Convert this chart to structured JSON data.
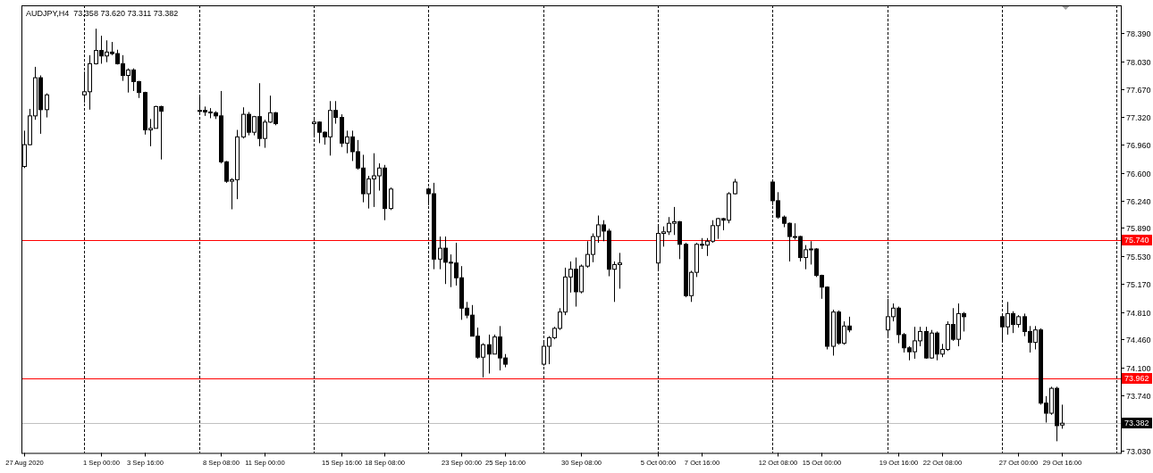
{
  "chart_data": {
    "type": "candlestick",
    "title": "AUDJPY,H4  73.358 73.620 73.311 73.382",
    "color": "#000000",
    "x": [
      "2020-08-27T08:00",
      "2020-08-27T16:00",
      "2020-08-28T00:00",
      "2020-08-28T08:00",
      "2020-08-28T16:00",
      "2020-08-31T00:00",
      "2020-08-31T08:00",
      "2020-08-31T16:00",
      "2020-09-01T00:00",
      "2020-09-01T08:00",
      "2020-09-01T16:00",
      "2020-09-02T00:00",
      "2020-09-02T08:00",
      "2020-09-02T16:00",
      "2020-09-03T00:00",
      "2020-09-03T08:00",
      "2020-09-03T16:00",
      "2020-09-04T00:00",
      "2020-09-04T08:00",
      "2020-09-04T16:00",
      "2020-09-07T00:00",
      "2020-09-07T08:00",
      "2020-09-07T16:00",
      "2020-09-08T00:00",
      "2020-09-08T08:00",
      "2020-09-08T16:00",
      "2020-09-09T00:00",
      "2020-09-09T08:00",
      "2020-09-09T16:00",
      "2020-09-10T00:00",
      "2020-09-10T08:00",
      "2020-09-10T16:00",
      "2020-09-11T00:00",
      "2020-09-11T08:00",
      "2020-09-11T16:00",
      "2020-09-14T00:00",
      "2020-09-14T08:00",
      "2020-09-14T16:00",
      "2020-09-15T00:00",
      "2020-09-15T08:00",
      "2020-09-15T16:00",
      "2020-09-16T00:00",
      "2020-09-16T08:00",
      "2020-09-16T16:00",
      "2020-09-17T00:00",
      "2020-09-17T08:00",
      "2020-09-17T16:00",
      "2020-09-18T00:00",
      "2020-09-18T08:00",
      "2020-09-18T16:00",
      "2020-09-21T00:00",
      "2020-09-21T08:00",
      "2020-09-21T16:00",
      "2020-09-22T00:00",
      "2020-09-22T08:00",
      "2020-09-22T16:00",
      "2020-09-23T00:00",
      "2020-09-23T08:00",
      "2020-09-23T16:00",
      "2020-09-24T00:00",
      "2020-09-24T08:00",
      "2020-09-24T16:00",
      "2020-09-25T00:00",
      "2020-09-25T08:00",
      "2020-09-25T16:00",
      "2020-09-28T00:00",
      "2020-09-28T08:00",
      "2020-09-28T16:00",
      "2020-09-29T00:00",
      "2020-09-29T08:00",
      "2020-09-29T16:00",
      "2020-09-30T00:00",
      "2020-09-30T08:00",
      "2020-09-30T16:00",
      "2020-10-01T00:00",
      "2020-10-01T08:00",
      "2020-10-01T16:00",
      "2020-10-02T00:00",
      "2020-10-02T08:00",
      "2020-10-02T16:00",
      "2020-10-05T00:00",
      "2020-10-05T08:00",
      "2020-10-05T16:00",
      "2020-10-06T00:00",
      "2020-10-06T08:00",
      "2020-10-06T16:00",
      "2020-10-07T00:00",
      "2020-10-07T08:00",
      "2020-10-07T16:00",
      "2020-10-08T00:00",
      "2020-10-08T08:00",
      "2020-10-08T16:00",
      "2020-10-09T00:00",
      "2020-10-09T08:00",
      "2020-10-09T16:00",
      "2020-10-12T00:00",
      "2020-10-12T08:00",
      "2020-10-12T16:00",
      "2020-10-13T00:00",
      "2020-10-13T08:00",
      "2020-10-13T16:00",
      "2020-10-14T00:00",
      "2020-10-14T08:00",
      "2020-10-14T16:00",
      "2020-10-15T00:00",
      "2020-10-15T08:00",
      "2020-10-15T16:00",
      "2020-10-16T00:00",
      "2020-10-16T08:00",
      "2020-10-16T16:00",
      "2020-10-19T00:00",
      "2020-10-19T08:00",
      "2020-10-19T16:00",
      "2020-10-20T00:00",
      "2020-10-20T08:00",
      "2020-10-20T16:00",
      "2020-10-21T00:00",
      "2020-10-21T08:00",
      "2020-10-21T16:00",
      "2020-10-22T00:00",
      "2020-10-22T08:00",
      "2020-10-22T16:00",
      "2020-10-23T00:00",
      "2020-10-23T08:00",
      "2020-10-23T16:00",
      "2020-10-26T00:00",
      "2020-10-26T08:00",
      "2020-10-26T16:00",
      "2020-10-27T00:00",
      "2020-10-27T08:00",
      "2020-10-27T16:00",
      "2020-10-28T00:00",
      "2020-10-28T08:00",
      "2020-10-28T16:00",
      "2020-10-29T00:00",
      "2020-10-29T08:00",
      "2020-10-29T16:00"
    ],
    "ohlc": [
      [
        76.68,
        77.14,
        76.66,
        76.96
      ],
      [
        76.96,
        77.42,
        76.95,
        77.33
      ],
      [
        77.33,
        77.96,
        77.28,
        77.82
      ],
      [
        77.82,
        77.85,
        77.1,
        77.41
      ],
      [
        77.41,
        77.62,
        77.31,
        77.6
      ],
      [
        77.6,
        77.9,
        77.5,
        77.64
      ],
      [
        77.64,
        78.11,
        77.41,
        78.0
      ],
      [
        78.0,
        78.45,
        77.99,
        78.17
      ],
      [
        78.17,
        78.36,
        78.0,
        78.1
      ],
      [
        78.1,
        78.3,
        78.02,
        78.15
      ],
      [
        78.15,
        78.28,
        78.11,
        78.13
      ],
      [
        78.13,
        78.18,
        77.99,
        78.0
      ],
      [
        78.0,
        78.11,
        77.78,
        77.85
      ],
      [
        77.85,
        77.94,
        77.63,
        77.92
      ],
      [
        77.92,
        77.94,
        77.65,
        77.77
      ],
      [
        77.77,
        77.78,
        77.56,
        77.63
      ],
      [
        77.63,
        77.64,
        77.09,
        77.15
      ],
      [
        77.15,
        77.29,
        76.94,
        77.17
      ],
      [
        77.17,
        77.46,
        77.17,
        77.45
      ],
      [
        77.45,
        77.46,
        76.77,
        77.39
      ],
      [
        77.39,
        77.59,
        77.36,
        77.4
      ],
      [
        77.4,
        77.45,
        77.33,
        77.38
      ],
      [
        77.38,
        77.43,
        77.3,
        77.37
      ],
      [
        77.37,
        77.39,
        77.29,
        77.33
      ],
      [
        77.33,
        77.65,
        76.72,
        76.74
      ],
      [
        76.74,
        76.75,
        76.47,
        76.49
      ],
      [
        76.49,
        76.53,
        76.13,
        76.51
      ],
      [
        76.51,
        77.15,
        76.26,
        77.06
      ],
      [
        77.06,
        77.44,
        77.04,
        77.35
      ],
      [
        77.35,
        77.38,
        77.08,
        77.12
      ],
      [
        77.12,
        77.33,
        77.08,
        77.32
      ],
      [
        77.32,
        77.75,
        76.94,
        77.04
      ],
      [
        77.04,
        77.28,
        76.92,
        77.25
      ],
      [
        77.25,
        77.59,
        77.24,
        77.37
      ],
      [
        77.37,
        77.38,
        77.21,
        77.23
      ],
      [
        77.23,
        77.28,
        77.08,
        77.25
      ],
      [
        77.25,
        77.26,
        76.98,
        77.12
      ],
      [
        77.12,
        77.13,
        76.96,
        77.06
      ],
      [
        77.06,
        77.52,
        76.82,
        77.4
      ],
      [
        77.4,
        77.52,
        77.23,
        77.31
      ],
      [
        77.31,
        77.35,
        76.93,
        76.98
      ],
      [
        76.98,
        77.14,
        76.85,
        77.06
      ],
      [
        77.06,
        77.14,
        76.75,
        76.87
      ],
      [
        76.87,
        77.02,
        76.64,
        76.66
      ],
      [
        76.66,
        76.83,
        76.22,
        76.33
      ],
      [
        76.33,
        76.56,
        76.14,
        76.52
      ],
      [
        76.52,
        76.85,
        76.16,
        76.56
      ],
      [
        76.56,
        76.72,
        76.37,
        76.66
      ],
      [
        76.66,
        76.7,
        75.99,
        76.14
      ],
      [
        76.14,
        76.41,
        76.12,
        76.39
      ],
      [
        76.39,
        76.41,
        76.18,
        76.33
      ],
      [
        76.33,
        76.47,
        75.36,
        75.49
      ],
      [
        75.49,
        75.78,
        75.36,
        75.63
      ],
      [
        75.63,
        75.78,
        75.17,
        75.45
      ],
      [
        75.45,
        75.55,
        75.13,
        75.44
      ],
      [
        75.44,
        75.7,
        75.15,
        75.25
      ],
      [
        75.25,
        75.4,
        74.71,
        74.86
      ],
      [
        74.86,
        74.94,
        74.73,
        74.77
      ],
      [
        74.77,
        74.9,
        74.5,
        74.5
      ],
      [
        74.5,
        74.61,
        74.21,
        74.23
      ],
      [
        74.23,
        74.41,
        73.97,
        74.39
      ],
      [
        74.39,
        74.52,
        74.02,
        74.27
      ],
      [
        74.27,
        74.52,
        74.27,
        74.49
      ],
      [
        74.49,
        74.63,
        74.06,
        74.22
      ],
      [
        74.22,
        74.27,
        74.1,
        74.14
      ],
      [
        74.14,
        74.42,
        74.12,
        74.37
      ],
      [
        74.37,
        74.5,
        74.14,
        74.48
      ],
      [
        74.48,
        74.62,
        74.46,
        74.6
      ],
      [
        74.6,
        74.86,
        74.58,
        74.81
      ],
      [
        74.81,
        75.38,
        74.77,
        75.26
      ],
      [
        75.26,
        75.46,
        75.06,
        75.36
      ],
      [
        75.36,
        75.51,
        74.88,
        75.07
      ],
      [
        75.07,
        75.42,
        75.05,
        75.4
      ],
      [
        75.4,
        75.72,
        75.38,
        75.55
      ],
      [
        75.55,
        75.82,
        75.45,
        75.78
      ],
      [
        75.78,
        76.05,
        75.7,
        75.93
      ],
      [
        75.93,
        75.99,
        75.72,
        75.85
      ],
      [
        75.85,
        75.88,
        75.27,
        75.36
      ],
      [
        75.36,
        75.46,
        74.94,
        75.42
      ],
      [
        75.42,
        75.57,
        75.11,
        75.44
      ],
      [
        75.44,
        75.91,
        75.36,
        75.82
      ],
      [
        75.82,
        75.91,
        75.65,
        75.84
      ],
      [
        75.84,
        76.03,
        75.8,
        75.95
      ],
      [
        75.95,
        76.16,
        75.8,
        75.97
      ],
      [
        75.97,
        75.98,
        75.49,
        75.68
      ],
      [
        75.68,
        75.7,
        75.0,
        75.02
      ],
      [
        75.02,
        75.34,
        74.94,
        75.32
      ],
      [
        75.32,
        75.7,
        75.26,
        75.68
      ],
      [
        75.68,
        75.76,
        75.62,
        75.67
      ],
      [
        75.67,
        75.76,
        75.53,
        75.72
      ],
      [
        75.72,
        75.99,
        75.7,
        75.92
      ],
      [
        75.92,
        76.02,
        75.75,
        76.01
      ],
      [
        76.01,
        76.02,
        75.86,
        75.99
      ],
      [
        75.99,
        76.35,
        75.95,
        76.33
      ],
      [
        76.33,
        76.52,
        76.32,
        76.48
      ],
      [
        76.48,
        76.49,
        76.18,
        76.24
      ],
      [
        76.24,
        76.35,
        76.01,
        76.03
      ],
      [
        76.03,
        76.05,
        75.9,
        75.95
      ],
      [
        75.95,
        75.96,
        75.46,
        75.78
      ],
      [
        75.78,
        75.95,
        75.74,
        75.78
      ],
      [
        75.78,
        75.79,
        75.46,
        75.51
      ],
      [
        75.51,
        75.67,
        75.36,
        75.61
      ],
      [
        75.61,
        75.72,
        75.42,
        75.62
      ],
      [
        75.62,
        75.63,
        75.26,
        75.28
      ],
      [
        75.28,
        75.29,
        74.98,
        75.13
      ],
      [
        75.13,
        75.14,
        74.33,
        74.37
      ],
      [
        74.37,
        74.84,
        74.25,
        74.81
      ],
      [
        74.81,
        74.83,
        74.39,
        74.41
      ],
      [
        74.41,
        74.69,
        74.39,
        74.63
      ],
      [
        74.63,
        74.75,
        74.55,
        74.58
      ],
      [
        74.58,
        74.98,
        74.5,
        74.75
      ],
      [
        74.75,
        74.92,
        74.69,
        74.86
      ],
      [
        74.86,
        74.88,
        74.41,
        74.52
      ],
      [
        74.52,
        74.54,
        74.29,
        74.35
      ],
      [
        74.35,
        74.37,
        74.19,
        74.3
      ],
      [
        74.3,
        74.62,
        74.21,
        74.44
      ],
      [
        74.44,
        74.62,
        74.37,
        74.56
      ],
      [
        74.56,
        74.62,
        74.21,
        74.22
      ],
      [
        74.22,
        74.58,
        74.21,
        74.54
      ],
      [
        74.54,
        74.56,
        74.19,
        74.27
      ],
      [
        74.27,
        74.4,
        74.23,
        74.33
      ],
      [
        74.33,
        74.69,
        74.31,
        74.65
      ],
      [
        74.65,
        74.86,
        74.44,
        74.46
      ],
      [
        74.46,
        74.92,
        74.37,
        74.79
      ],
      [
        74.79,
        74.81,
        74.56,
        74.75
      ],
      [
        74.75,
        74.76,
        74.44,
        74.62
      ],
      [
        74.62,
        74.94,
        74.52,
        74.79
      ],
      [
        74.79,
        74.82,
        74.54,
        74.65
      ],
      [
        74.65,
        74.77,
        74.61,
        74.75
      ],
      [
        74.75,
        74.79,
        74.5,
        74.56
      ],
      [
        74.56,
        74.63,
        74.29,
        74.42
      ],
      [
        74.42,
        74.63,
        74.33,
        74.58
      ],
      [
        74.58,
        74.6,
        73.62,
        73.64
      ],
      [
        73.64,
        73.73,
        73.39,
        73.51
      ],
      [
        73.51,
        73.85,
        73.49,
        73.83
      ],
      [
        73.83,
        73.85,
        73.15,
        73.35
      ],
      [
        73.358,
        73.62,
        73.311,
        73.382
      ]
    ],
    "xlim": [
      "2020-08-27T04:00",
      "2020-11-02T06:00"
    ],
    "xticks": [
      {
        "value": "2020-08-27T08:00",
        "label": "27 Aug 2020"
      },
      {
        "value": "2020-09-01T00:00",
        "label": "1 Sep 00:00"
      },
      {
        "value": "2020-09-03T16:00",
        "label": "3 Sep 16:00"
      },
      {
        "value": "2020-09-08T08:00",
        "label": "8 Sep 08:00"
      },
      {
        "value": "2020-09-11T00:00",
        "label": "11 Sep 00:00"
      },
      {
        "value": "2020-09-15T16:00",
        "label": "15 Sep 16:00"
      },
      {
        "value": "2020-09-18T08:00",
        "label": "18 Sep 08:00"
      },
      {
        "value": "2020-09-23T00:00",
        "label": "23 Sep 00:00"
      },
      {
        "value": "2020-09-25T16:00",
        "label": "25 Sep 16:00"
      },
      {
        "value": "2020-09-30T08:00",
        "label": "30 Sep 08:00"
      },
      {
        "value": "2020-10-05T00:00",
        "label": "5 Oct 00:00"
      },
      {
        "value": "2020-10-07T16:00",
        "label": "7 Oct 16:00"
      },
      {
        "value": "2020-10-12T08:00",
        "label": "12 Oct 08:00"
      },
      {
        "value": "2020-10-15T00:00",
        "label": "15 Oct 00:00"
      },
      {
        "value": "2020-10-19T16:00",
        "label": "19 Oct 16:00"
      },
      {
        "value": "2020-10-22T08:00",
        "label": "22 Oct 08:00"
      },
      {
        "value": "2020-10-27T00:00",
        "label": "27 Oct 00:00"
      },
      {
        "value": "2020-10-29T16:00",
        "label": "29 Oct 16:00"
      }
    ],
    "ylim": [
      73.0,
      78.75
    ],
    "yticks": [
      {
        "value": 78.39,
        "label": "78.390"
      },
      {
        "value": 78.03,
        "label": "78.030"
      },
      {
        "value": 77.67,
        "label": "77.670"
      },
      {
        "value": 77.32,
        "label": "77.320"
      },
      {
        "value": 76.96,
        "label": "76.960"
      },
      {
        "value": 76.6,
        "label": "76.600"
      },
      {
        "value": 76.24,
        "label": "76.240"
      },
      {
        "value": 75.89,
        "label": "75.890"
      },
      {
        "value": 75.53,
        "label": "75.530"
      },
      {
        "value": 75.17,
        "label": "75.170"
      },
      {
        "value": 74.81,
        "label": "74.810"
      },
      {
        "value": 74.46,
        "label": "74.460"
      },
      {
        "value": 74.1,
        "label": "74.100"
      },
      {
        "value": 73.74,
        "label": "73.740"
      },
      {
        "value": 73.03,
        "label": "73.030"
      }
    ],
    "ref_lines": [
      {
        "axis": "y",
        "value": 75.74,
        "label": "75.740",
        "color": "#ff0000"
      },
      {
        "axis": "y",
        "value": 73.962,
        "label": "73.962",
        "color": "#ff0000"
      },
      {
        "axis": "y",
        "value": 73.382,
        "label": "73.382",
        "color": "#c0c0c0"
      },
      {
        "axis": "x",
        "value": "2020-08-31T00:00",
        "color": "#000000",
        "line_style": "dashed"
      },
      {
        "axis": "x",
        "value": "2020-09-07T00:00",
        "color": "#000000",
        "line_style": "dashed"
      },
      {
        "axis": "x",
        "value": "2020-09-14T00:00",
        "color": "#000000",
        "line_style": "dashed"
      },
      {
        "axis": "x",
        "value": "2020-09-21T00:00",
        "color": "#000000",
        "line_style": "dashed"
      },
      {
        "axis": "x",
        "value": "2020-09-28T00:00",
        "color": "#000000",
        "line_style": "dashed"
      },
      {
        "axis": "x",
        "value": "2020-10-05T00:00",
        "color": "#000000",
        "line_style": "dashed"
      },
      {
        "axis": "x",
        "value": "2020-10-12T00:00",
        "color": "#000000",
        "line_style": "dashed"
      },
      {
        "axis": "x",
        "value": "2020-10-19T00:00",
        "color": "#000000",
        "line_style": "dashed"
      },
      {
        "axis": "x",
        "value": "2020-10-26T00:00",
        "color": "#000000",
        "line_style": "dashed"
      },
      {
        "axis": "x",
        "value": "2020-11-02T00:00",
        "color": "#000000",
        "line_style": "dashed"
      }
    ]
  }
}
